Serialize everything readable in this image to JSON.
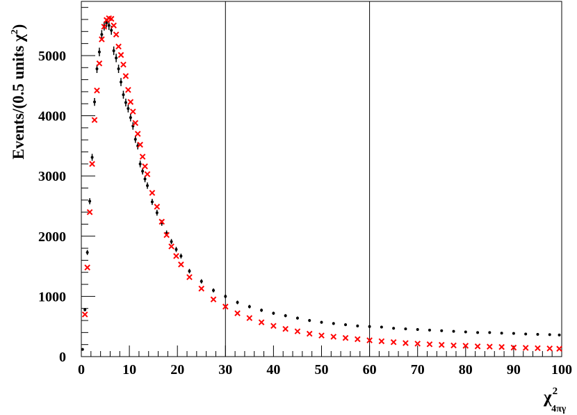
{
  "chart_data": {
    "type": "scatter",
    "title": "",
    "xlabel": {
      "base": "χ",
      "sup": "2",
      "sub": "4πγ"
    },
    "ylabel": {
      "text": "Events/(0.5 units χ",
      "sup": "2",
      "close": ")"
    },
    "xlim": [
      0,
      100
    ],
    "ylim": [
      0,
      5900
    ],
    "x_ticks": [
      0,
      10,
      20,
      30,
      40,
      50,
      60,
      70,
      80,
      90,
      100
    ],
    "y_ticks": [
      0,
      1000,
      2000,
      3000,
      4000,
      5000
    ],
    "vertical_lines": [
      30,
      60
    ],
    "grid": false,
    "colors": {
      "data": "#000000",
      "mc": "#ff0000",
      "axis": "#000000"
    },
    "series": [
      {
        "marker": "dot-errorbar",
        "color": "#000000",
        "x": [
          0.25,
          0.75,
          1.25,
          1.75,
          2.25,
          2.75,
          3.25,
          3.75,
          4.25,
          4.75,
          5.25,
          5.75,
          6.25,
          6.75,
          7.25,
          7.75,
          8.25,
          8.75,
          9.25,
          9.75,
          10.25,
          10.75,
          11.25,
          11.75,
          12.25,
          12.75,
          13.25,
          13.75,
          14.75,
          15.75,
          16.75,
          17.75,
          18.75,
          19.75,
          20.75,
          22.5,
          25,
          27.5,
          30,
          32.5,
          35,
          37.5,
          40,
          42.5,
          45,
          47.5,
          50,
          52.5,
          55,
          57.5,
          60,
          62.5,
          65,
          67.5,
          70,
          72.5,
          75,
          77.5,
          80,
          82.5,
          85,
          87.5,
          90,
          92.5,
          95,
          97.5,
          99.5
        ],
        "y": [
          120,
          780,
          1730,
          2580,
          3310,
          4230,
          4780,
          5060,
          5350,
          5490,
          5540,
          5500,
          5420,
          5080,
          4960,
          4780,
          4560,
          4350,
          4220,
          4120,
          3970,
          3830,
          3610,
          3500,
          3200,
          3080,
          2950,
          2840,
          2570,
          2390,
          2220,
          2050,
          1910,
          1780,
          1670,
          1420,
          1250,
          1100,
          1000,
          900,
          830,
          770,
          720,
          680,
          640,
          600,
          570,
          550,
          530,
          510,
          500,
          490,
          470,
          460,
          450,
          440,
          430,
          420,
          410,
          400,
          400,
          390,
          385,
          375,
          370,
          365,
          360
        ]
      },
      {
        "marker": "x",
        "color": "#ff0000",
        "x": [
          0.75,
          1.25,
          1.75,
          2.25,
          2.75,
          3.25,
          3.75,
          4.25,
          4.75,
          5.25,
          5.75,
          6.25,
          6.75,
          7.25,
          7.75,
          8.25,
          8.75,
          9.25,
          9.75,
          10.25,
          10.75,
          11.25,
          11.75,
          12.25,
          12.75,
          13.25,
          13.75,
          14.75,
          15.75,
          16.75,
          17.75,
          18.75,
          19.75,
          20.75,
          22.5,
          25,
          27.5,
          30,
          32.5,
          35,
          37.5,
          40,
          42.5,
          45,
          47.5,
          50,
          52.5,
          55,
          57.5,
          60,
          62.5,
          65,
          67.5,
          70,
          72.5,
          75,
          77.5,
          80,
          82.5,
          85,
          87.5,
          90,
          92.5,
          95,
          97.5,
          99.5
        ],
        "y": [
          700,
          1480,
          2400,
          3200,
          3930,
          4420,
          4870,
          5270,
          5480,
          5590,
          5620,
          5610,
          5500,
          5350,
          5150,
          5010,
          4850,
          4660,
          4430,
          4230,
          4070,
          3880,
          3700,
          3520,
          3320,
          3160,
          3030,
          2720,
          2490,
          2240,
          2020,
          1830,
          1670,
          1530,
          1320,
          1130,
          950,
          830,
          720,
          640,
          570,
          510,
          460,
          420,
          380,
          350,
          330,
          310,
          290,
          270,
          255,
          240,
          225,
          215,
          205,
          195,
          185,
          180,
          170,
          165,
          160,
          150,
          145,
          140,
          135,
          130
        ]
      }
    ]
  }
}
